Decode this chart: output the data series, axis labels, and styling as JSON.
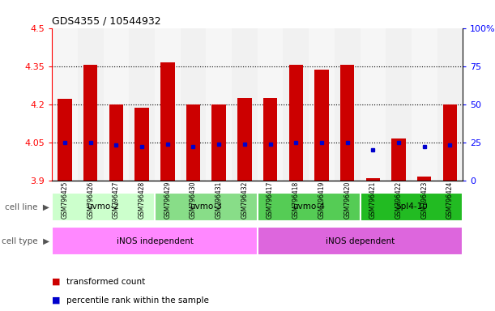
{
  "title": "GDS4355 / 10544932",
  "samples": [
    "GSM796425",
    "GSM796426",
    "GSM796427",
    "GSM796428",
    "GSM796429",
    "GSM796430",
    "GSM796431",
    "GSM796432",
    "GSM796417",
    "GSM796418",
    "GSM796419",
    "GSM796420",
    "GSM796421",
    "GSM796422",
    "GSM796423",
    "GSM796424"
  ],
  "transformed_count": [
    4.22,
    4.355,
    4.2,
    4.185,
    4.365,
    4.2,
    4.2,
    4.225,
    4.225,
    4.355,
    4.335,
    4.355,
    3.91,
    4.065,
    3.915,
    4.2
  ],
  "percentile_rank_pct": [
    25,
    25,
    23,
    22,
    24,
    22,
    24,
    24,
    24,
    25,
    25,
    25,
    20,
    25,
    22,
    23
  ],
  "ylim": [
    3.9,
    4.5
  ],
  "y2lim": [
    0,
    100
  ],
  "yticks": [
    3.9,
    4.05,
    4.2,
    4.35,
    4.5
  ],
  "y2ticks": [
    0,
    25,
    50,
    75,
    100
  ],
  "bar_color": "#cc0000",
  "dot_color": "#0000cc",
  "bar_bottom": 3.9,
  "gridlines": [
    4.05,
    4.2,
    4.35
  ],
  "cell_line_groups": [
    {
      "label": "uvmo-2",
      "start": 0,
      "end": 3,
      "color": "#ccffcc"
    },
    {
      "label": "uvmo-3",
      "start": 4,
      "end": 7,
      "color": "#88dd88"
    },
    {
      "label": "uvmo-4",
      "start": 8,
      "end": 11,
      "color": "#55cc55"
    },
    {
      "label": "Spl4-10",
      "start": 12,
      "end": 15,
      "color": "#22bb22"
    }
  ],
  "cell_type_groups": [
    {
      "label": "iNOS independent",
      "start": 0,
      "end": 7,
      "color": "#ff88ff"
    },
    {
      "label": "iNOS dependent",
      "start": 8,
      "end": 15,
      "color": "#dd66dd"
    }
  ],
  "bar_bg_colors": [
    "#e8e8e8",
    "#d8d8d8"
  ]
}
